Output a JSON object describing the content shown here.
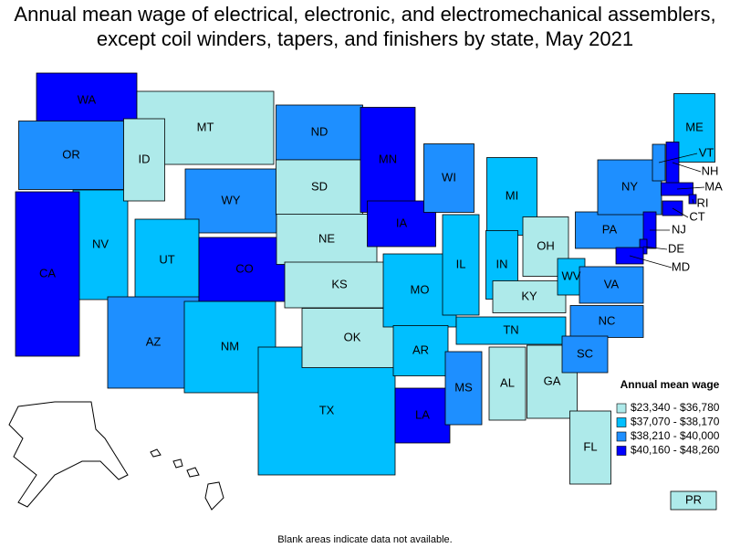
{
  "title": "Annual mean wage of electrical, electronic, and electromechanical assemblers, except coil winders, tapers, and finishers by state, May 2021",
  "legend": {
    "title": "Annual mean wage",
    "items": [
      {
        "label": "$23,340 - $36,780",
        "color": "#aeeaea"
      },
      {
        "label": "$37,070 - $38,170",
        "color": "#00bfff"
      },
      {
        "label": "$38,210 - $40,000",
        "color": "#1e8fff"
      },
      {
        "label": "$40,160 - $48,260",
        "color": "#0000ff"
      }
    ]
  },
  "states": [
    {
      "label": "NV",
      "color": "#00bfff"
    },
    {
      "label": "CA",
      "color": "#0000ff"
    },
    {
      "label": "WA",
      "color": "#0000ff"
    },
    {
      "label": "OR",
      "color": "#1e8fff"
    },
    {
      "label": "MT",
      "color": "#aeeaea"
    },
    {
      "label": "ID",
      "color": "#aeeaea"
    },
    {
      "label": "WY",
      "color": "#1e8fff"
    },
    {
      "label": "UT",
      "color": "#00bfff"
    },
    {
      "label": "AZ",
      "color": "#1e8fff"
    },
    {
      "label": "CO",
      "color": "#0000ff"
    },
    {
      "label": "NM",
      "color": "#00bfff"
    },
    {
      "label": "TX",
      "color": "#00bfff"
    },
    {
      "label": "ND",
      "color": "#1e8fff"
    },
    {
      "label": "SD",
      "color": "#aeeaea"
    },
    {
      "label": "NE",
      "color": "#aeeaea"
    },
    {
      "label": "KS",
      "color": "#aeeaea"
    },
    {
      "label": "OK",
      "color": "#aeeaea"
    },
    {
      "label": "MN",
      "color": "#0000ff"
    },
    {
      "label": "IA",
      "color": "#0000ff"
    },
    {
      "label": "MO",
      "color": "#00bfff"
    },
    {
      "label": "AR",
      "color": "#00bfff"
    },
    {
      "label": "LA",
      "color": "#0000ff"
    },
    {
      "label": "WI",
      "color": "#1e8fff"
    },
    {
      "label": "IL",
      "color": "#00bfff"
    },
    {
      "label": "MS",
      "color": "#1e8fff"
    },
    {
      "label": "MI",
      "color": "#00bfff"
    },
    {
      "label": "IN",
      "color": "#00bfff"
    },
    {
      "label": "OH",
      "color": "#aeeaea"
    },
    {
      "label": "KY",
      "color": "#aeeaea"
    },
    {
      "label": "TN",
      "color": "#00bfff"
    },
    {
      "label": "AL",
      "color": "#aeeaea"
    },
    {
      "label": "GA",
      "color": "#aeeaea"
    },
    {
      "label": "FL",
      "color": "#aeeaea"
    },
    {
      "label": "WV",
      "color": "#00bfff"
    },
    {
      "label": "VA",
      "color": "#1e8fff"
    },
    {
      "label": "NC",
      "color": "#1e8fff"
    },
    {
      "label": "SC",
      "color": "#1e8fff"
    },
    {
      "label": "PA",
      "color": "#1e8fff"
    },
    {
      "label": "NY",
      "color": "#1e8fff"
    },
    {
      "label": "ME",
      "color": "#00bfff"
    },
    {
      "label": "VT",
      "color": "#1e8fff"
    },
    {
      "label": "NH",
      "color": "#0000ff"
    },
    {
      "label": "MA",
      "color": "#0000ff"
    },
    {
      "label": "RI",
      "color": "#0000ff"
    },
    {
      "label": "CT",
      "color": "#0000ff"
    },
    {
      "label": "NJ",
      "color": "#0000ff"
    },
    {
      "label": "DE",
      "color": "#0000ff"
    },
    {
      "label": "MD",
      "color": "#0000ff"
    },
    {
      "label": "PR",
      "color": "#aeeaea"
    }
  ],
  "footnote": "Blank areas indicate data not available."
}
